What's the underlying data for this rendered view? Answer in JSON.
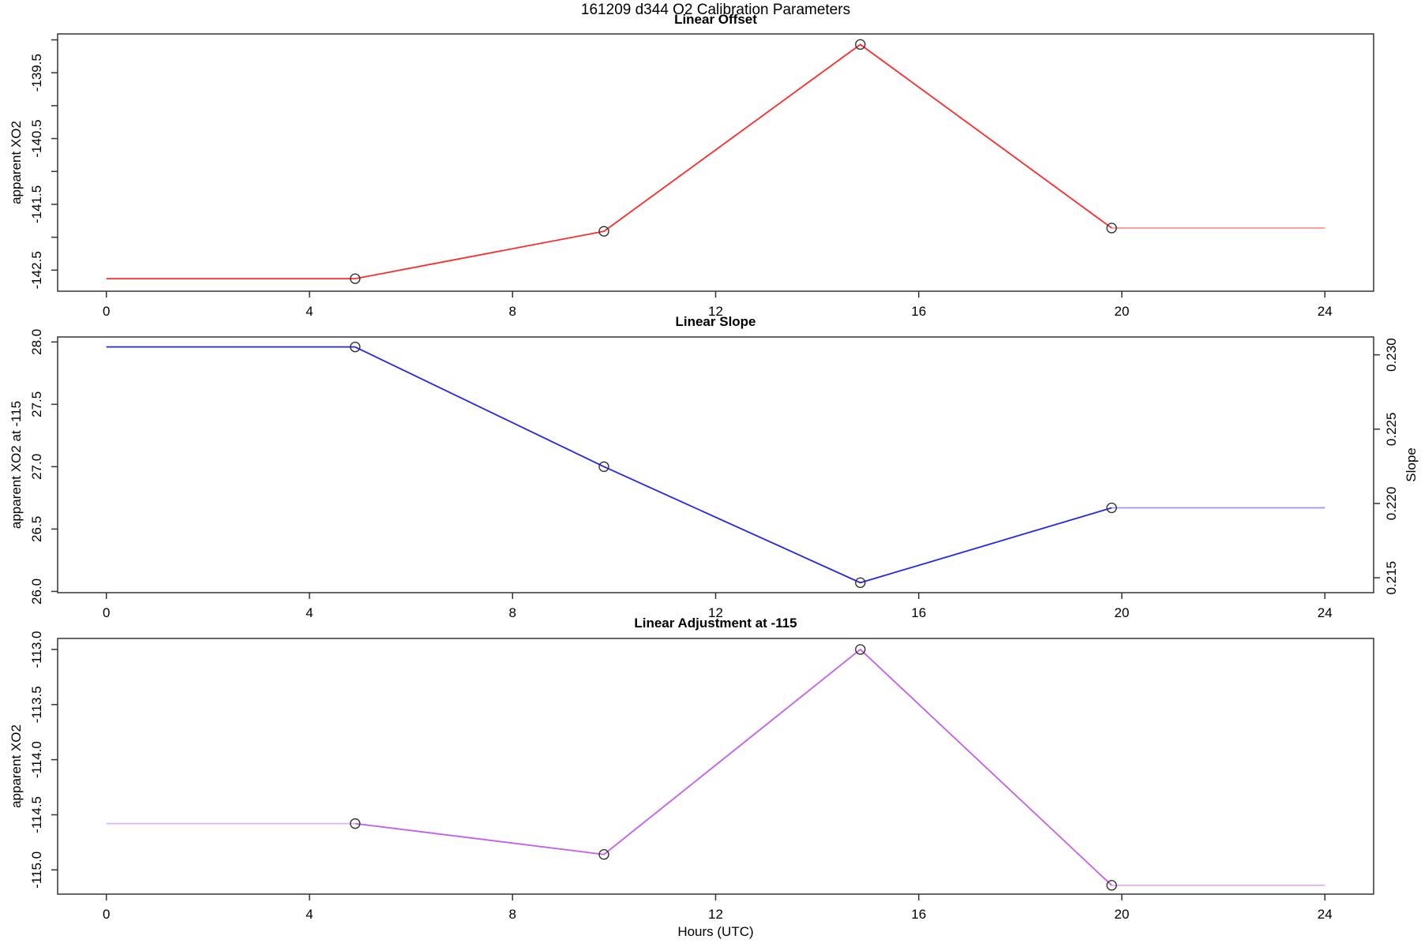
{
  "figure": {
    "title": "161209   d344   O2 Calibration Parameters",
    "xlabel": "Hours (UTC)",
    "background": "#ffffff",
    "axis_color": "#333333",
    "text_color": "#000000",
    "marker_color": "#333333"
  },
  "chart_data": [
    {
      "type": "line",
      "title": "Linear Offset",
      "ylabel": "apparent XO2",
      "series_color": "#ff2a2a",
      "x": [
        0,
        4.9,
        9.8,
        14.85,
        19.8,
        24
      ],
      "y": [
        -142.63,
        -142.63,
        -141.91,
        -139.07,
        -141.86,
        -141.86
      ],
      "marker_hours": [
        4.9,
        9.8,
        14.85,
        19.8
      ],
      "marker_values": [
        -142.63,
        -141.91,
        -139.07,
        -141.86
      ],
      "xlim": [
        0,
        24
      ],
      "xticks": [
        0,
        4,
        8,
        12,
        16,
        20,
        24
      ],
      "xtick_labels": [
        "0",
        "4",
        "8",
        "12",
        "16",
        "20",
        "24"
      ],
      "ylim_padded": [
        -142.82,
        -138.91
      ],
      "yticks": [
        -142.5,
        -142.0,
        -141.5,
        -141.0,
        -140.5,
        -140.0,
        -139.5,
        -139.0
      ],
      "ytick_labels": [
        "-142.5",
        "",
        "-141.5",
        "",
        "-140.5",
        "",
        "-139.5",
        ""
      ],
      "grid": false,
      "legend": false,
      "faded_lead": false,
      "faded_tail": true
    },
    {
      "type": "line",
      "title": "Linear Slope",
      "ylabel": "apparent XO2 at -115",
      "ylabel_right": "Slope",
      "series_color": "#2525ee",
      "x": [
        0,
        4.9,
        9.8,
        14.85,
        19.8,
        24
      ],
      "y": [
        27.96,
        27.96,
        27.0,
        26.07,
        26.67,
        26.67
      ],
      "marker_hours": [
        4.9,
        9.8,
        14.85,
        19.8
      ],
      "marker_values": [
        27.96,
        27.0,
        26.07,
        26.67
      ],
      "slope_values_right_axis": [
        0.2305,
        0.2226,
        0.2146,
        0.2197
      ],
      "xlim": [
        0,
        24
      ],
      "xticks": [
        0,
        4,
        8,
        12,
        16,
        20,
        24
      ],
      "xtick_labels": [
        "0",
        "4",
        "8",
        "12",
        "16",
        "20",
        "24"
      ],
      "ylim_padded": [
        25.99,
        28.04
      ],
      "yticks": [
        26.0,
        26.5,
        27.0,
        27.5,
        28.0
      ],
      "ytick_labels": [
        "26.0",
        "26.5",
        "27.0",
        "27.5",
        "28.0"
      ],
      "right_lim_padded": [
        0.214,
        0.2312
      ],
      "right_ticks": [
        0.215,
        0.22,
        0.225,
        0.23
      ],
      "right_tick_labels": [
        "0.215",
        "0.220",
        "0.225",
        "0.230"
      ],
      "grid": false,
      "legend": false,
      "faded_lead": false,
      "faded_tail": true
    },
    {
      "type": "line",
      "title": "Linear Adjustment at -115",
      "ylabel": "apparent XO2",
      "series_color": "#c45eea",
      "x": [
        0,
        4.9,
        9.8,
        14.85,
        19.8,
        24
      ],
      "y": [
        -114.58,
        -114.58,
        -114.86,
        -113.0,
        -115.14,
        -115.14
      ],
      "marker_hours": [
        4.9,
        9.8,
        14.85,
        19.8
      ],
      "marker_values": [
        -114.58,
        -114.86,
        -113.0,
        -115.14
      ],
      "xlim": [
        0,
        24
      ],
      "xticks": [
        0,
        4,
        8,
        12,
        16,
        20,
        24
      ],
      "xtick_labels": [
        "0",
        "4",
        "8",
        "12",
        "16",
        "20",
        "24"
      ],
      "ylim_padded": [
        -115.22,
        -112.9
      ],
      "yticks": [
        -115.0,
        -114.5,
        -114.0,
        -113.5,
        -113.0
      ],
      "ytick_labels": [
        "-115.0",
        "-114.5",
        "-114.0",
        "-113.5",
        "-113.0"
      ],
      "grid": false,
      "legend": false,
      "faded_lead": true,
      "faded_tail": true
    }
  ]
}
